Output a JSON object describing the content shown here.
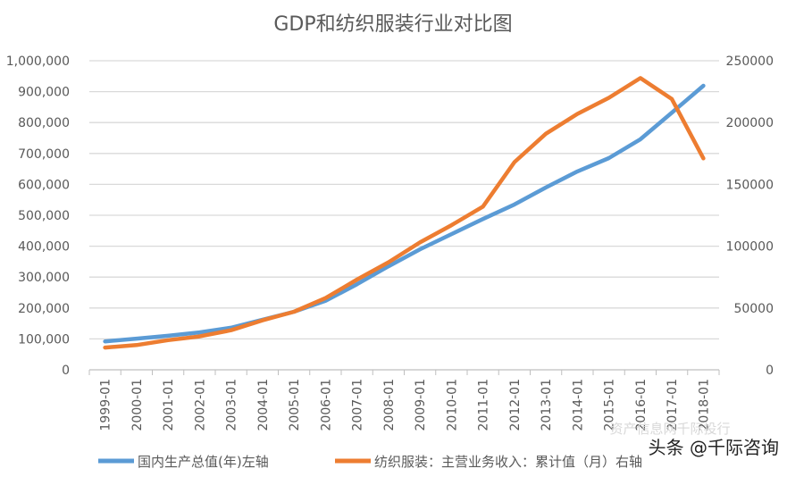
{
  "chart_data": {
    "type": "line",
    "title": "GDP和纺织服装行业对比图",
    "categories": [
      "1999-01",
      "2000-01",
      "2001-01",
      "2002-01",
      "2003-01",
      "2004-01",
      "2005-01",
      "2006-01",
      "2007-01",
      "2008-01",
      "2009-01",
      "2010-01",
      "2011-01",
      "2012-01",
      "2013-01",
      "2014-01",
      "2015-01",
      "2016-01",
      "2017-01",
      "2018-01"
    ],
    "left_axis": {
      "ylim": [
        0,
        1000000
      ],
      "ticks": [
        "0",
        "100,000",
        "200,000",
        "300,000",
        "400,000",
        "500,000",
        "600,000",
        "700,000",
        "800,000",
        "900,000",
        "1,000,000"
      ]
    },
    "right_axis": {
      "ylim": [
        0,
        250000
      ],
      "ticks": [
        "0",
        "50000",
        "100000",
        "150000",
        "200000",
        "250000"
      ]
    },
    "grid": true,
    "legend_position": "bottom",
    "series": [
      {
        "name": "国内生产总值(年)左轴",
        "axis": "left",
        "color": "#5b9bd5",
        "values": [
          92000,
          101000,
          110000,
          121000,
          136000,
          162000,
          188000,
          223000,
          277000,
          335000,
          390000,
          439000,
          488000,
          535000,
          590000,
          642000,
          685000,
          746000,
          832000,
          919000
        ]
      },
      {
        "name": "纺织服装：主营业务收入：累计值（月）右轴",
        "axis": "right",
        "color": "#ed7d31",
        "values": [
          18000,
          20000,
          24000,
          27000,
          32000,
          40000,
          47000,
          58000,
          73000,
          87000,
          103000,
          117000,
          132000,
          168000,
          191000,
          207000,
          220000,
          236000,
          219000,
          171000
        ]
      }
    ]
  },
  "watermarks": [
    "资产信息网千际投行",
    "头条 @千际咨询"
  ]
}
